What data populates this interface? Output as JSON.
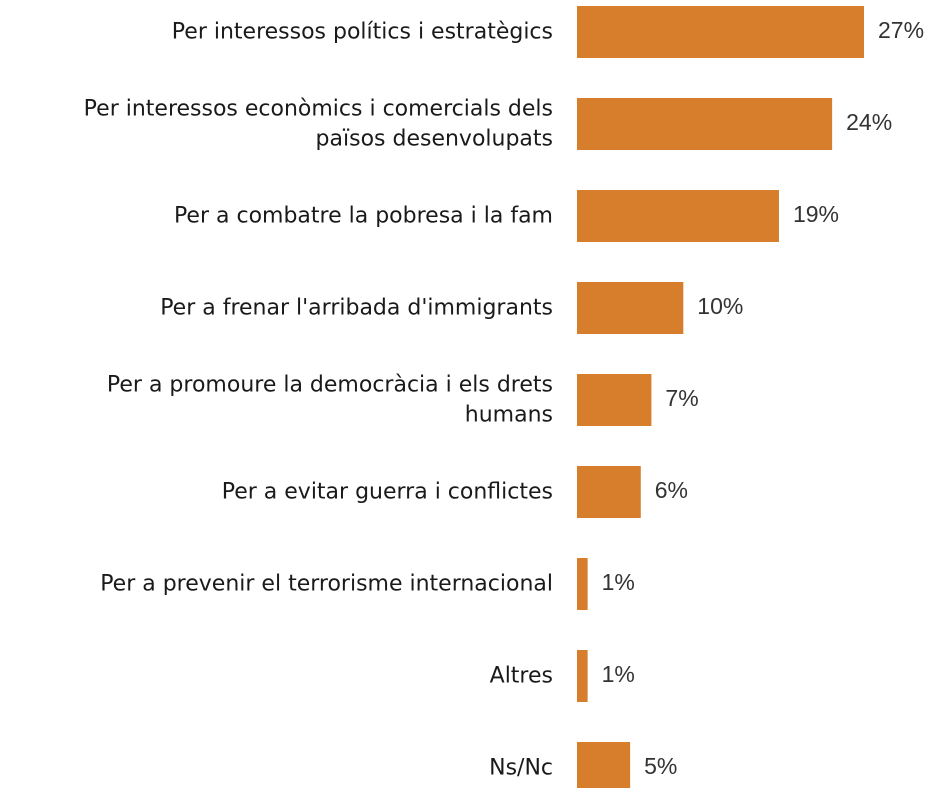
{
  "chart_data": {
    "type": "bar",
    "orientation": "horizontal",
    "categories": [
      [
        "Per interessos polítics i estratègics"
      ],
      [
        "Per interessos econòmics i comercials dels",
        "països desenvolupats"
      ],
      [
        "Per a combatre la pobresa i la fam"
      ],
      [
        "Per a frenar l'arribada d'immigrants"
      ],
      [
        "Per a promoure la democràcia i els drets",
        "humans"
      ],
      [
        "Per a evitar guerra i conflictes"
      ],
      [
        "Per a prevenir el terrorisme internacional"
      ],
      [
        "Altres"
      ],
      [
        "Ns/Nc"
      ]
    ],
    "values": [
      27,
      24,
      19,
      10,
      7,
      6,
      1,
      1,
      5
    ],
    "value_labels": [
      "27%",
      "24%",
      "19%",
      "10%",
      "7%",
      "6%",
      "1%",
      "1%",
      "5%"
    ],
    "bar_color": "#D67E2C",
    "xlim": [
      0,
      27
    ],
    "grid": false,
    "axes_visible": false,
    "legend": "none"
  }
}
